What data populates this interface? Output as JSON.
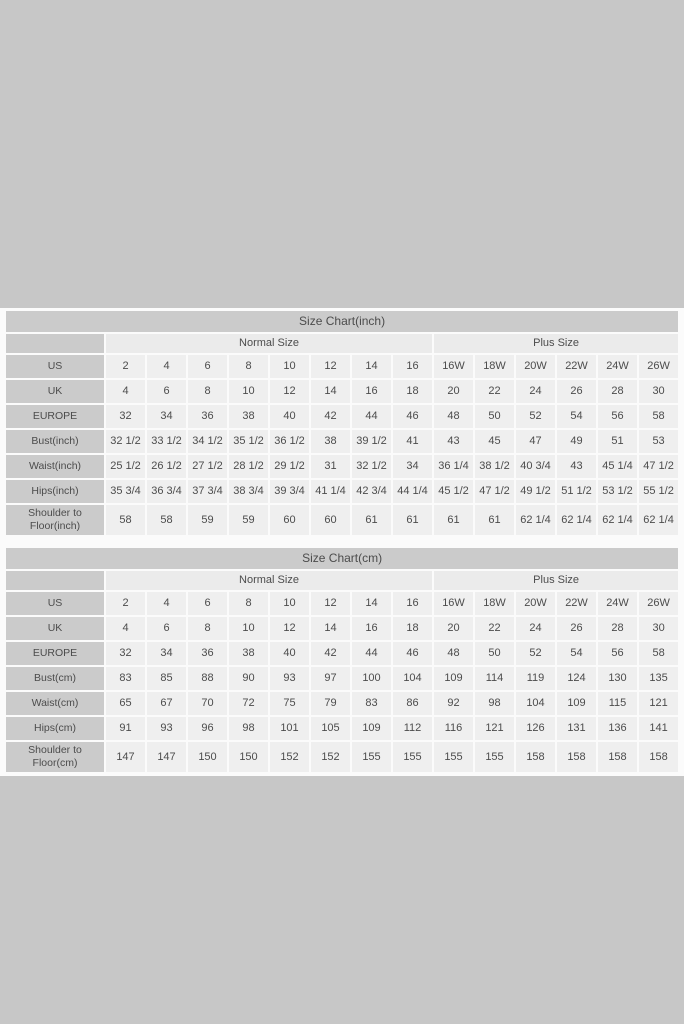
{
  "page": {
    "background_color": "#c7c7c7",
    "panel_color": "#fbfbfb",
    "title_bar_color": "#cbcbcb",
    "label_cell_color": "#cbcbcb",
    "group_header_cell_color": "#ebebeb",
    "data_cell_color": "#efefef",
    "text_color": "#4c4c4c"
  },
  "tables": [
    {
      "title": "Size Chart(inch)",
      "groups": [
        {
          "label": "Normal Size",
          "span": 8
        },
        {
          "label": "Plus Size",
          "span": 6
        }
      ],
      "rows": [
        {
          "label": "US",
          "values": [
            "2",
            "4",
            "6",
            "8",
            "10",
            "12",
            "14",
            "16",
            "16W",
            "18W",
            "20W",
            "22W",
            "24W",
            "26W"
          ]
        },
        {
          "label": "UK",
          "values": [
            "4",
            "6",
            "8",
            "10",
            "12",
            "14",
            "16",
            "18",
            "20",
            "22",
            "24",
            "26",
            "28",
            "30"
          ]
        },
        {
          "label": "EUROPE",
          "values": [
            "32",
            "34",
            "36",
            "38",
            "40",
            "42",
            "44",
            "46",
            "48",
            "50",
            "52",
            "54",
            "56",
            "58"
          ]
        },
        {
          "label": "Bust(inch)",
          "values": [
            "32 1/2",
            "33 1/2",
            "34 1/2",
            "35 1/2",
            "36 1/2",
            "38",
            "39 1/2",
            "41",
            "43",
            "45",
            "47",
            "49",
            "51",
            "53"
          ]
        },
        {
          "label": "Waist(inch)",
          "values": [
            "25 1/2",
            "26 1/2",
            "27 1/2",
            "28 1/2",
            "29 1/2",
            "31",
            "32 1/2",
            "34",
            "36 1/4",
            "38 1/2",
            "40 3/4",
            "43",
            "45 1/4",
            "47 1/2"
          ]
        },
        {
          "label": "Hips(inch)",
          "values": [
            "35 3/4",
            "36 3/4",
            "37 3/4",
            "38 3/4",
            "39 3/4",
            "41 1/4",
            "42 3/4",
            "44 1/4",
            "45 1/2",
            "47 1/2",
            "49 1/2",
            "51 1/2",
            "53 1/2",
            "55 1/2"
          ]
        },
        {
          "label": "Shoulder to Floor(inch)",
          "values": [
            "58",
            "58",
            "59",
            "59",
            "60",
            "60",
            "61",
            "61",
            "61",
            "61",
            "62 1/4",
            "62 1/4",
            "62 1/4",
            "62 1/4"
          ]
        }
      ]
    },
    {
      "title": "Size Chart(cm)",
      "groups": [
        {
          "label": "Normal Size",
          "span": 8
        },
        {
          "label": "Plus Size",
          "span": 6
        }
      ],
      "rows": [
        {
          "label": "US",
          "values": [
            "2",
            "4",
            "6",
            "8",
            "10",
            "12",
            "14",
            "16",
            "16W",
            "18W",
            "20W",
            "22W",
            "24W",
            "26W"
          ]
        },
        {
          "label": "UK",
          "values": [
            "4",
            "6",
            "8",
            "10",
            "12",
            "14",
            "16",
            "18",
            "20",
            "22",
            "24",
            "26",
            "28",
            "30"
          ]
        },
        {
          "label": "EUROPE",
          "values": [
            "32",
            "34",
            "36",
            "38",
            "40",
            "42",
            "44",
            "46",
            "48",
            "50",
            "52",
            "54",
            "56",
            "58"
          ]
        },
        {
          "label": "Bust(cm)",
          "values": [
            "83",
            "85",
            "88",
            "90",
            "93",
            "97",
            "100",
            "104",
            "109",
            "114",
            "119",
            "124",
            "130",
            "135"
          ]
        },
        {
          "label": "Waist(cm)",
          "values": [
            "65",
            "67",
            "70",
            "72",
            "75",
            "79",
            "83",
            "86",
            "92",
            "98",
            "104",
            "109",
            "115",
            "121"
          ]
        },
        {
          "label": "Hips(cm)",
          "values": [
            "91",
            "93",
            "96",
            "98",
            "101",
            "105",
            "109",
            "112",
            "116",
            "121",
            "126",
            "131",
            "136",
            "141"
          ]
        },
        {
          "label": "Shoulder to Floor(cm)",
          "values": [
            "147",
            "147",
            "150",
            "150",
            "152",
            "152",
            "155",
            "155",
            "155",
            "155",
            "158",
            "158",
            "158",
            "158"
          ]
        }
      ]
    }
  ]
}
